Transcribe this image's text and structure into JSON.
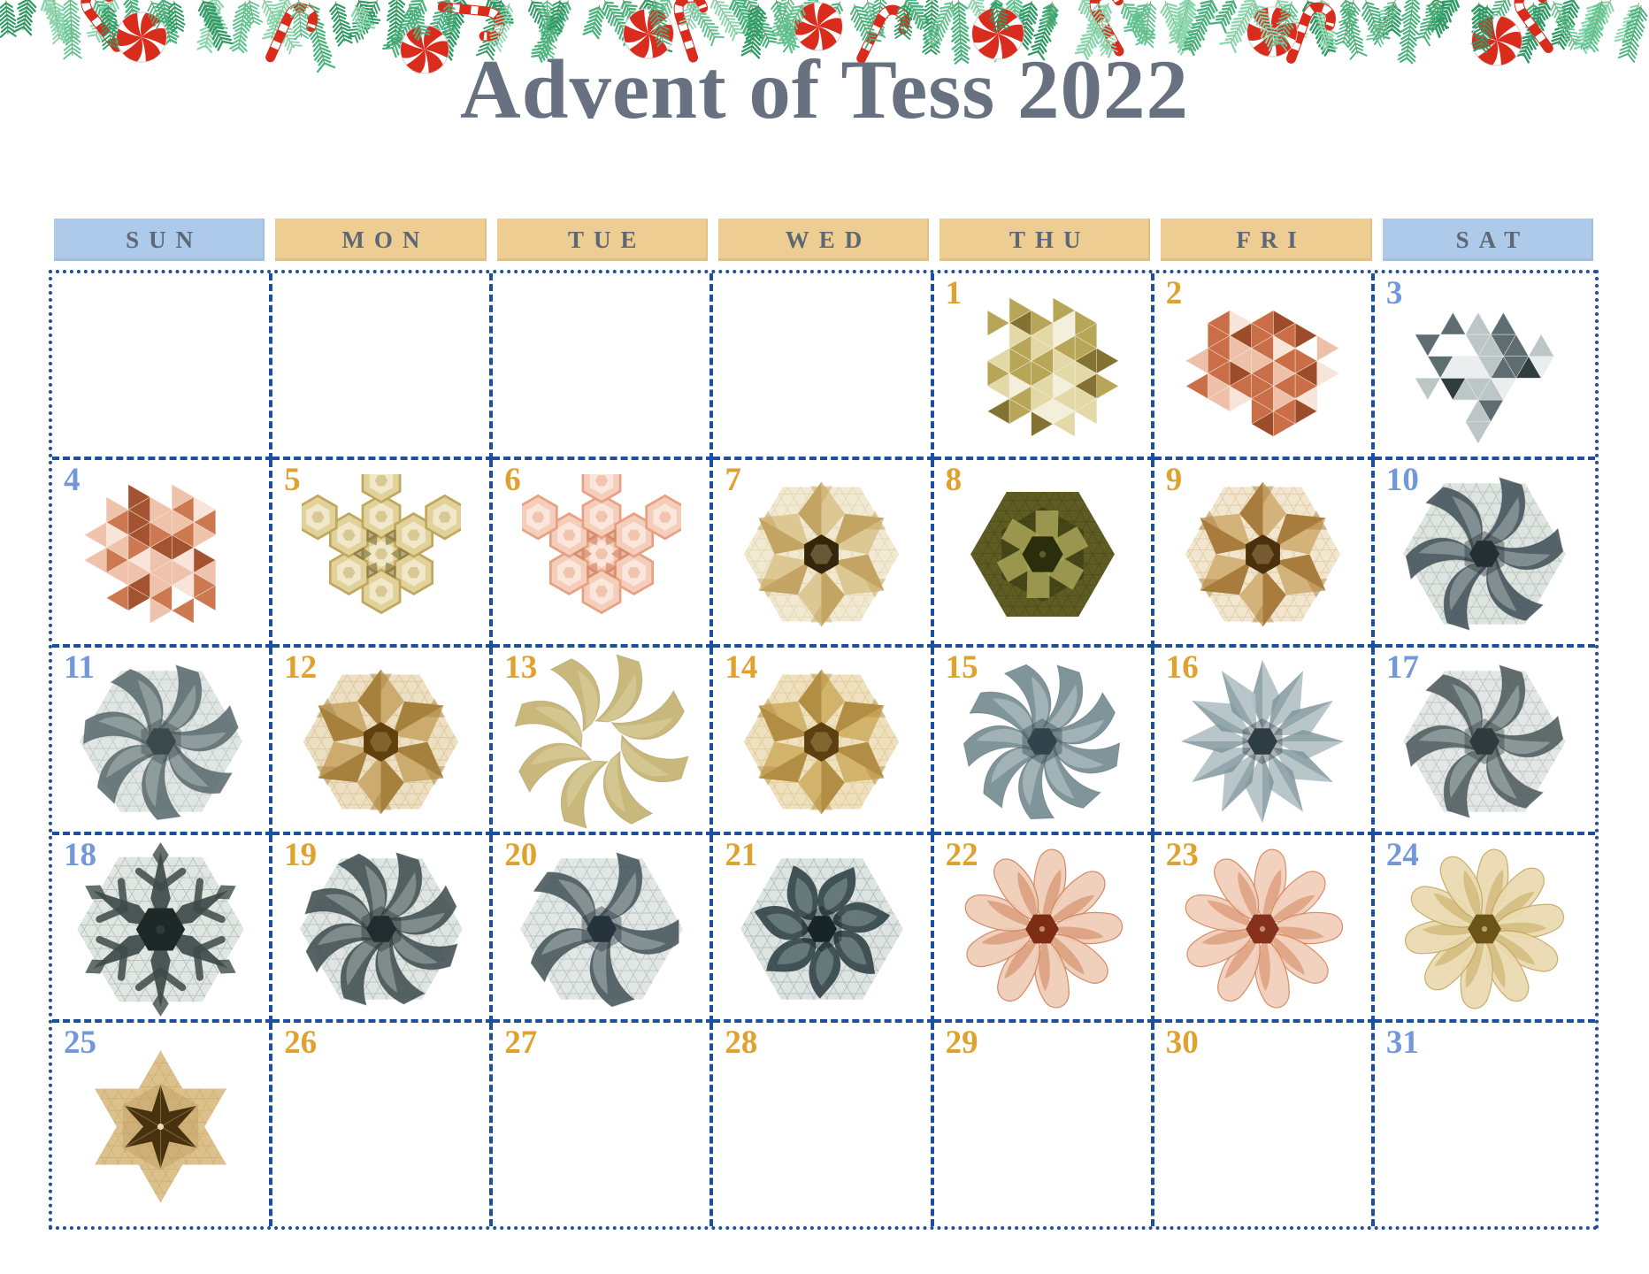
{
  "title": "Advent of Tess 2022",
  "weekdays": [
    {
      "label": "SUN",
      "kind": "weekend"
    },
    {
      "label": "MON",
      "kind": "weekday"
    },
    {
      "label": "TUE",
      "kind": "weekday"
    },
    {
      "label": "WED",
      "kind": "weekday"
    },
    {
      "label": "THU",
      "kind": "weekday"
    },
    {
      "label": "FRI",
      "kind": "weekday"
    },
    {
      "label": "SAT",
      "kind": "weekend"
    }
  ],
  "palette": {
    "background": "#ffffff",
    "title": "#67717f",
    "header_text": "#5d6877",
    "header_weekend_bg": "#aecaea",
    "header_weekday_bg": "#edcd92",
    "grid_border": "#1d4f9f",
    "date_weekend": "#7398da",
    "date_weekday": "#dfa22f"
  },
  "garland": {
    "icons": [
      "pine-branch-icon",
      "candy-cane-icon",
      "peppermint-candy-icon"
    ],
    "greens": [
      "#49b27e",
      "#63c493",
      "#2f9a66",
      "#8ad6ae"
    ],
    "candy_red": "#d92c1c",
    "candy_white": "#ffffff",
    "mint_outline": "#dcdcdc"
  },
  "weeks": [
    [
      {
        "day": null
      },
      {
        "day": null
      },
      {
        "day": null
      },
      {
        "day": null
      },
      {
        "day": 1,
        "weekday": "THU",
        "image": {
          "kind": "origami-tessellation",
          "type": "mosaic",
          "palette": {
            "pale": "#f4efda",
            "light": "#e3d9a6",
            "main": "#b7a558",
            "dark": "#837231"
          }
        }
      },
      {
        "day": 2,
        "weekday": "FRI",
        "image": {
          "kind": "origami-tessellation",
          "type": "mosaic",
          "palette": {
            "pale": "#f7e5da",
            "light": "#eec0a8",
            "main": "#c96e46",
            "dark": "#9c4c28"
          }
        }
      },
      {
        "day": 3,
        "weekday": "SAT",
        "image": {
          "kind": "origami-tessellation",
          "type": "mosaic",
          "variant": "sparse",
          "palette": {
            "pale": "#eaeeee",
            "light": "#bcc6c6",
            "main": "#5e6d70",
            "dark": "#313c3f"
          }
        }
      }
    ],
    [
      {
        "day": 4,
        "weekday": "SUN",
        "image": {
          "kind": "origami-tessellation",
          "type": "mosaic",
          "palette": {
            "pale": "#f8e4d8",
            "light": "#efc2ab",
            "main": "#cc7851",
            "dark": "#a35330"
          }
        }
      },
      {
        "day": 5,
        "weekday": "MON",
        "image": {
          "kind": "origami-tessellation",
          "type": "hexmosaic",
          "palette": {
            "pale": "#f3ecd2",
            "light": "#e1d29b",
            "main": "#c0a75c",
            "dark": "#6c5a23"
          }
        }
      },
      {
        "day": 6,
        "weekday": "TUE",
        "image": {
          "kind": "origami-tessellation",
          "type": "hexmosaic",
          "palette": {
            "pale": "#fbeae0",
            "light": "#f4cdbb",
            "main": "#e7a182",
            "dark": "#c9734f"
          }
        }
      },
      {
        "day": 7,
        "weekday": "WED",
        "image": {
          "kind": "origami-tessellation",
          "type": "star",
          "palette": {
            "pale": "#f1e9d1",
            "light": "#e3d0a0",
            "main": "#c3a462",
            "dark": "#33260a"
          }
        }
      },
      {
        "day": 8,
        "weekday": "THU",
        "image": {
          "kind": "origami-tessellation",
          "type": "spiral",
          "palette": {
            "pale": "#dcd9a8",
            "light": "#a9a457",
            "main": "#5e5c23",
            "dark": "#2a2e0d"
          }
        }
      },
      {
        "day": 9,
        "weekday": "FRI",
        "image": {
          "kind": "origami-tessellation",
          "type": "star",
          "palette": {
            "pale": "#f2e7ce",
            "light": "#ddc089",
            "main": "#a87c3c",
            "dark": "#4b300d"
          }
        }
      },
      {
        "day": 10,
        "weekday": "SAT",
        "image": {
          "kind": "origami-tessellation",
          "type": "pinwheel",
          "blades": 6,
          "palette": {
            "base": "#dee5e1",
            "light": "#b9c6c6",
            "main": "#42525a",
            "dark": "#232f35"
          }
        }
      }
    ],
    [
      {
        "day": 11,
        "weekday": "SUN",
        "image": {
          "kind": "origami-tessellation",
          "type": "pinwheel",
          "blades": 7,
          "palette": {
            "base": "#e0e6e3",
            "light": "#bac6c4",
            "main": "#5b6d6f",
            "dark": "#3a494b"
          }
        }
      },
      {
        "day": 12,
        "weekday": "MON",
        "image": {
          "kind": "origami-tessellation",
          "type": "star",
          "palette": {
            "pale": "#eddfc1",
            "light": "#d5b77a",
            "main": "#a6813d",
            "dark": "#5f400e"
          }
        }
      },
      {
        "day": 13,
        "weekday": "TUE",
        "image": {
          "kind": "origami-tessellation",
          "type": "pinwheel",
          "blades": 8,
          "variant": "open",
          "palette": {
            "base": null,
            "light": "#e3d8aa",
            "main": "#c1af6b",
            "dark": "#8d7c3b"
          }
        }
      },
      {
        "day": 14,
        "weekday": "WED",
        "image": {
          "kind": "origami-tessellation",
          "type": "star",
          "palette": {
            "pale": "#efe1be",
            "light": "#dabd76",
            "main": "#b18e43",
            "dark": "#5d4010"
          }
        }
      },
      {
        "day": 15,
        "weekday": "THU",
        "image": {
          "kind": "origami-tessellation",
          "type": "pinwheel",
          "blades": 9,
          "palette": {
            "base": null,
            "light": "#cad7d9",
            "main": "#6f878d",
            "dark": "#32434b"
          }
        }
      },
      {
        "day": 16,
        "weekday": "FRI",
        "image": {
          "kind": "origami-tessellation",
          "type": "pinwheel",
          "blades": 12,
          "variant": "pointed",
          "palette": {
            "base": null,
            "light": "#d0dbdd",
            "main": "#7c949b",
            "dark": "#2d3d43"
          }
        }
      },
      {
        "day": 17,
        "weekday": "SAT",
        "image": {
          "kind": "origami-tessellation",
          "type": "pinwheel",
          "blades": 6,
          "palette": {
            "base": "#e3e8e6",
            "light": "#c2cecc",
            "main": "#4e5b5d",
            "dark": "#2f3a3c"
          }
        }
      }
    ],
    [
      {
        "day": 18,
        "weekday": "SUN",
        "image": {
          "kind": "origami-tessellation",
          "type": "snowflake",
          "palette": {
            "base": "#e0e6e2",
            "light": "#b7c3c0",
            "main": "#3d4b4a",
            "dark": "#1d2827"
          }
        }
      },
      {
        "day": 19,
        "weekday": "MON",
        "image": {
          "kind": "origami-tessellation",
          "type": "pinwheel",
          "blades": 8,
          "palette": {
            "base": "#dfe5e2",
            "light": "#b5c2bf",
            "main": "#404f51",
            "dark": "#202c2d"
          }
        }
      },
      {
        "day": 20,
        "weekday": "TUE",
        "image": {
          "kind": "origami-tessellation",
          "type": "pinwheel",
          "blades": 5,
          "palette": {
            "base": "#e1e7e4",
            "light": "#bcc8c5",
            "main": "#46565b",
            "dark": "#26333b"
          }
        }
      },
      {
        "day": 21,
        "weekday": "WED",
        "image": {
          "kind": "origami-tessellation",
          "type": "pinwheel",
          "blades": 7,
          "variant": "hook",
          "palette": {
            "base": "#dde4e1",
            "light": "#b2bfbc",
            "main": "#304347",
            "dark": "#172428"
          }
        }
      },
      {
        "day": 22,
        "weekday": "THU",
        "image": {
          "kind": "origami-tessellation",
          "type": "flower",
          "petals": 9,
          "palette": {
            "light": "#efccb6",
            "main": "#cc7a51",
            "dark": "#7d2d13"
          }
        }
      },
      {
        "day": 23,
        "weekday": "FRI",
        "image": {
          "kind": "origami-tessellation",
          "type": "flower",
          "petals": 9,
          "palette": {
            "light": "#f1ceb9",
            "main": "#d07e54",
            "dark": "#85311b"
          }
        }
      },
      {
        "day": 24,
        "weekday": "SAT",
        "image": {
          "kind": "origami-tessellation",
          "type": "flower",
          "petals": 10,
          "palette": {
            "light": "#ebdaaf",
            "main": "#c0a356",
            "dark": "#6c5417"
          }
        }
      }
    ],
    [
      {
        "day": 25,
        "weekday": "SUN",
        "image": {
          "kind": "origami-tessellation",
          "type": "star6",
          "palette": {
            "pale": "#ecd9b0",
            "light": "#ddc18c",
            "main": "#b18d4b",
            "dark": "#47310f"
          }
        }
      },
      {
        "day": 26,
        "weekday": "MON",
        "image": null
      },
      {
        "day": 27,
        "weekday": "TUE",
        "image": null
      },
      {
        "day": 28,
        "weekday": "WED",
        "image": null
      },
      {
        "day": 29,
        "weekday": "THU",
        "image": null
      },
      {
        "day": 30,
        "weekday": "FRI",
        "image": null
      },
      {
        "day": 31,
        "weekday": "SAT",
        "image": null
      }
    ]
  ]
}
